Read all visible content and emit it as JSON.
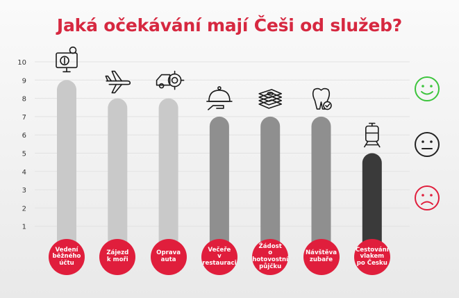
{
  "chart_data": {
    "type": "bar",
    "title": "Jaká očekávání mají Češi od služeb?",
    "categories": [
      "Vedení běžného účtu",
      "Zájezd k moři",
      "Oprava auta",
      "Večeře v restauraci",
      "Žádost o hotovostní půjčku",
      "Návštěva zubaře",
      "Cestování vlakem po Česku"
    ],
    "category_lines": [
      [
        "Vedení",
        "běžného",
        "účtu"
      ],
      [
        "Zájezd",
        "k moři"
      ],
      [
        "Oprava",
        "auta"
      ],
      [
        "Večeře",
        "v restauraci"
      ],
      [
        "Žádost",
        "o hotovostní",
        "půjčku"
      ],
      [
        "Návštěva",
        "zubaře"
      ],
      [
        "Cestování",
        "vlakem",
        "po Česku"
      ]
    ],
    "values": [
      9,
      8,
      8,
      7,
      7,
      7,
      5
    ],
    "icons": [
      "computer-money-icon",
      "airplane-icon",
      "car-repair-icon",
      "cloche-dinner-icon",
      "cash-stack-icon",
      "tooth-check-icon",
      "train-icon"
    ],
    "yticks": [
      1,
      2,
      3,
      4,
      5,
      6,
      7,
      8,
      9,
      10
    ],
    "ylim": [
      0,
      10
    ],
    "xlabel": "",
    "ylabel": "",
    "grid": true,
    "legend": "none",
    "faces": [
      {
        "name": "happy-face-icon",
        "color": "#3cc43c"
      },
      {
        "name": "neutral-face-icon",
        "color": "#222222"
      },
      {
        "name": "sad-face-icon",
        "color": "#e01e3c"
      }
    ],
    "colors": {
      "title": "#d62840",
      "bar_light": "#c9c9c9",
      "bar_mid": "#8f8f8f",
      "bar_dark": "#3a3a3a",
      "badge": "#e01e3c"
    }
  }
}
